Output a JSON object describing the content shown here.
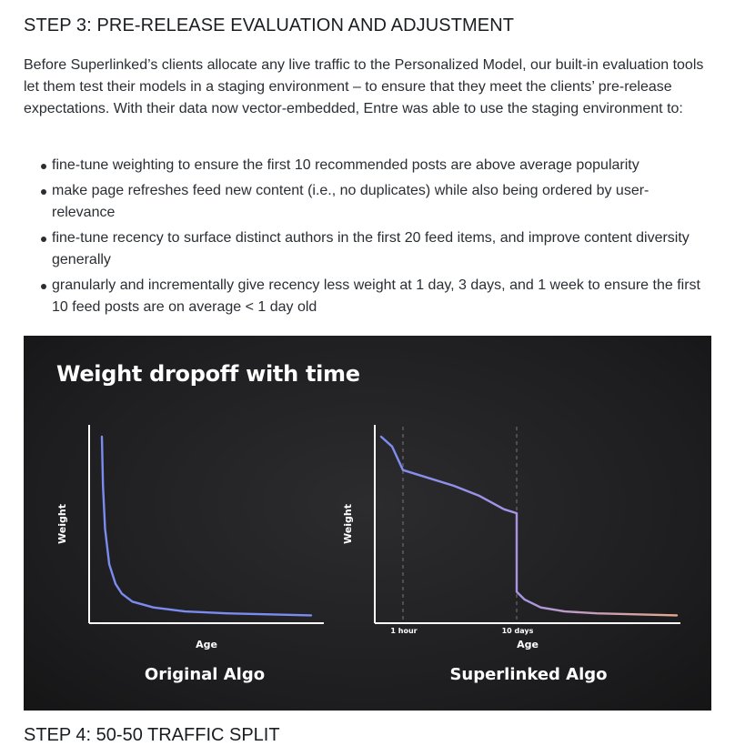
{
  "section": {
    "heading": "STEP 3: PRE-RELEASE EVALUATION AND ADJUSTMENT",
    "intro": "Before Superlinked’s clients allocate any live traffic to the Personalized Model, our built-in evaluation tools let them test their models in a staging environment – to ensure that they meet the clients’ pre-release expectations. With their data now vector-embedded, Entre was able to use the staging environment to:",
    "bullets": [
      "fine-tune weighting to ensure the first 10 recommended posts are above average popularity",
      "make page refreshes feed new content (i.e., no duplicates) while also being ordered by user-relevance",
      "fine-tune recency to surface distinct authors in the first 20 feed items, and improve content diversity generally",
      "granularly and incrementally give recency less weight at 1 day, 3 days, and 1 week to ensure the first 10 feed posts are on average < 1 day old"
    ]
  },
  "figure": {
    "title": "Weight dropoff with time",
    "colors": {
      "background": "#1d1d1f",
      "curve_start": "#7b8cf0",
      "curve_end": "#e5a88a"
    }
  },
  "chart_data": [
    {
      "type": "line",
      "title": "Original Algo",
      "xlabel": "Age",
      "ylabel": "Weight",
      "grid": false,
      "x": [
        0.05,
        0.1,
        0.2,
        0.4,
        0.7,
        1.0,
        1.5,
        2.5,
        4,
        6,
        8,
        10
      ],
      "series": [
        {
          "values": [
            0.95,
            0.7,
            0.48,
            0.3,
            0.2,
            0.15,
            0.11,
            0.08,
            0.06,
            0.05,
            0.045,
            0.04
          ]
        }
      ]
    },
    {
      "type": "line",
      "title": "Superlinked Algo",
      "xlabel": "Age",
      "ylabel": "Weight",
      "grid": false,
      "x_markers": [
        "1 hour",
        "10 days"
      ],
      "x": [
        0,
        0.5,
        1,
        3,
        5,
        7,
        9,
        10,
        10,
        11,
        13,
        16,
        20,
        25,
        30
      ],
      "series": [
        {
          "values": [
            0.95,
            0.9,
            0.78,
            0.74,
            0.7,
            0.65,
            0.58,
            0.56,
            0.16,
            0.12,
            0.08,
            0.06,
            0.05,
            0.045,
            0.04
          ]
        }
      ]
    }
  ],
  "next_heading": "STEP 4: 50-50 TRAFFIC SPLIT"
}
